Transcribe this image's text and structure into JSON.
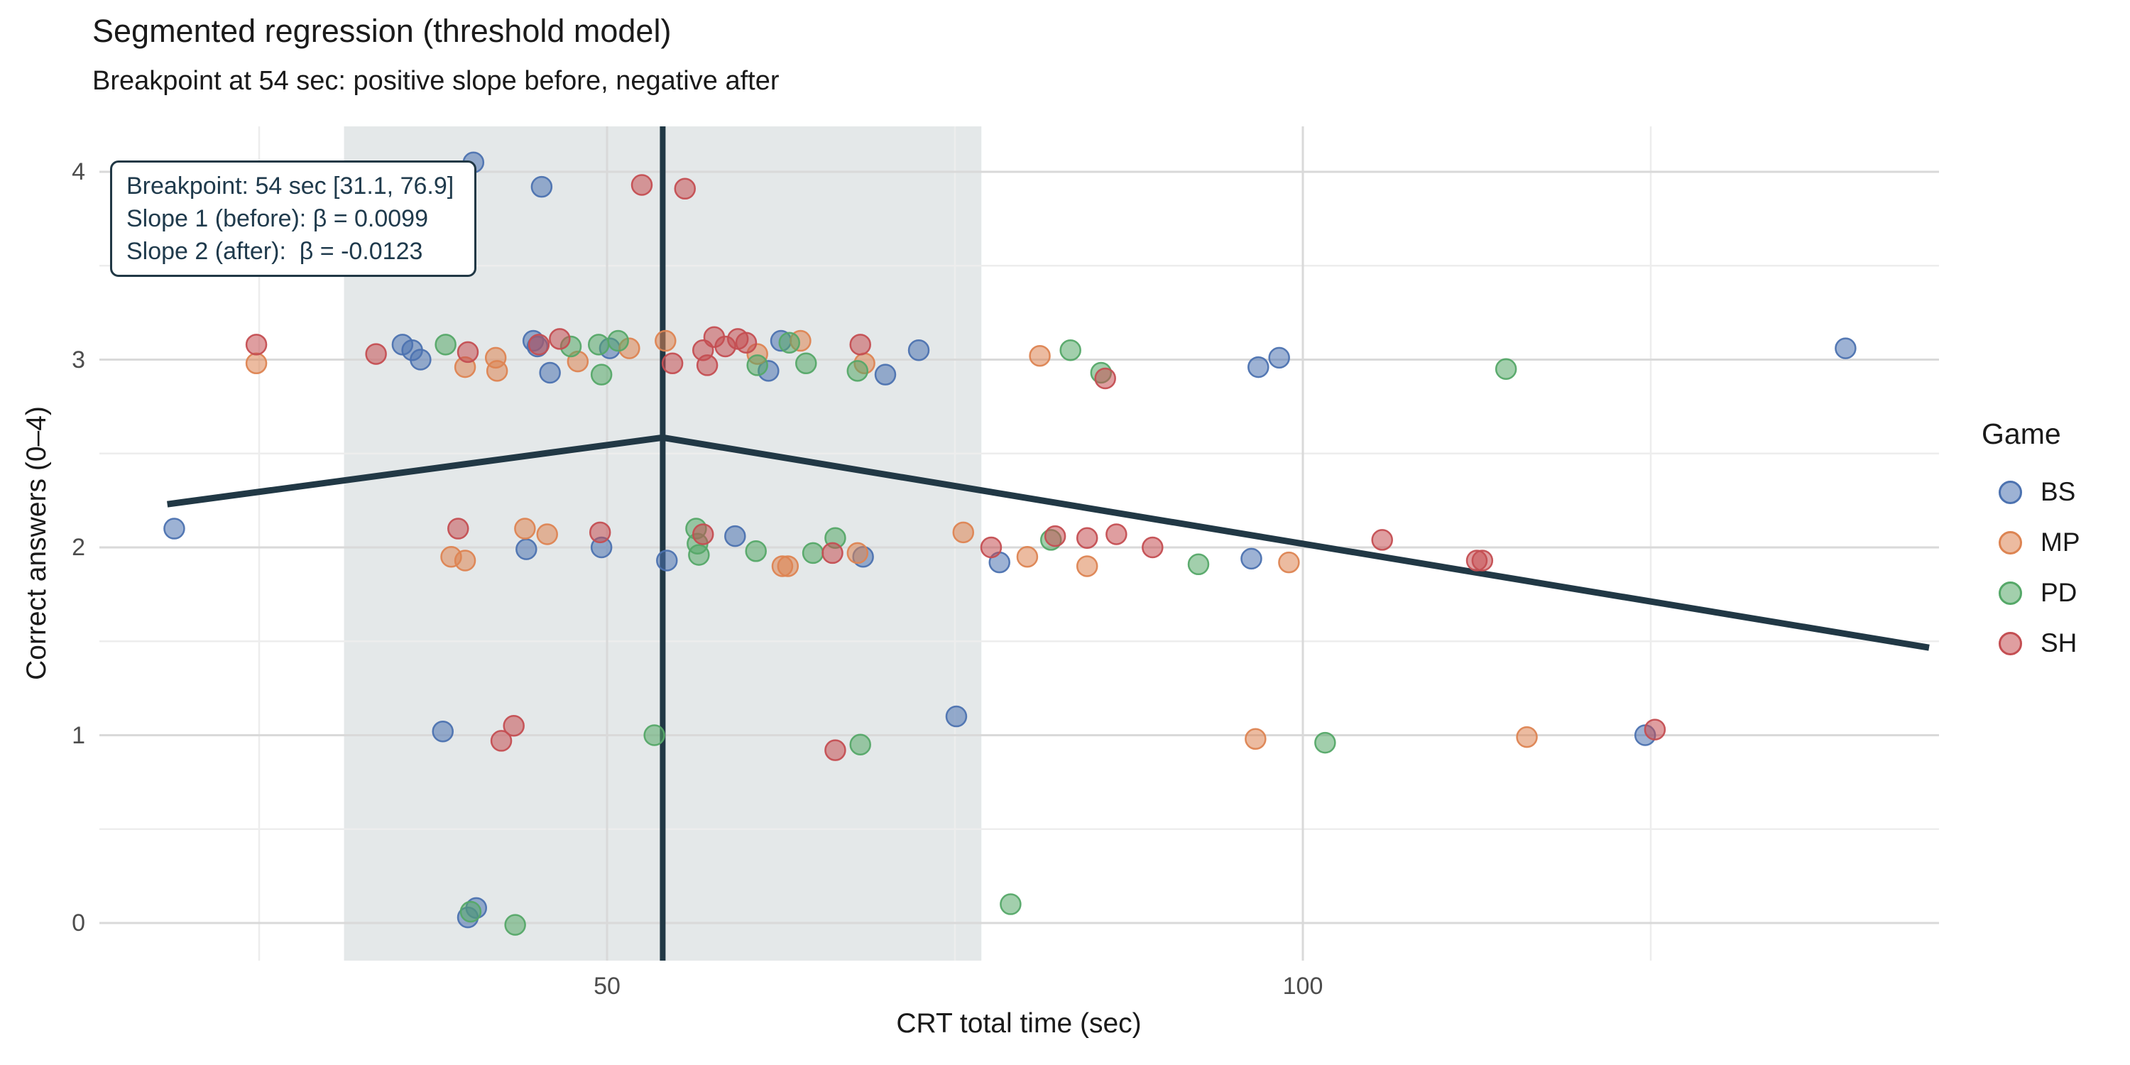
{
  "title": "Segmented regression (threshold model)",
  "subtitle": "Breakpoint at 54 sec: positive slope before, negative after",
  "x_axis": {
    "label": "CRT total time (sec)",
    "ticks": [
      50,
      100
    ],
    "minor_ticks": [
      25,
      75,
      125
    ],
    "range": [
      13,
      146
    ]
  },
  "y_axis": {
    "label": "Correct answers (0–4)",
    "ticks": [
      0,
      1,
      2,
      3,
      4
    ],
    "minor_ticks": [
      0.5,
      1.5,
      2.5,
      3.5
    ],
    "range": [
      -0.2,
      4.22
    ]
  },
  "annotation": {
    "lines": [
      "Breakpoint: 54 sec [31.1, 76.9]",
      "Slope 1 (before): β = 0.0099",
      "Slope 2 (after):  β = -0.0123"
    ]
  },
  "legend": {
    "title": "Game",
    "entries": [
      {
        "label": "BS",
        "color": "#4C72B0"
      },
      {
        "label": "MP",
        "color": "#DD8452"
      },
      {
        "label": "PD",
        "color": "#55A868"
      },
      {
        "label": "SH",
        "color": "#C44E52"
      }
    ]
  },
  "model": {
    "breakpoint_sec": 54,
    "ci_low": 31.1,
    "ci_high": 76.9,
    "slope_before": 0.0099,
    "slope_after": -0.0123,
    "segment_line": {
      "x": [
        18.4,
        54,
        145
      ],
      "y": [
        2.23,
        2.585,
        1.466
      ]
    }
  },
  "style_colors": {
    "line_dark": "#213845",
    "ci_band": "#e4e8e9",
    "grid_major": "#d9d9d9",
    "grid_minor": "#ededed",
    "tick_text": "#4d4d4d",
    "point_fill_alpha": 0.55
  },
  "chart_data": {
    "type": "scatter",
    "title": "Segmented regression (threshold model)",
    "subtitle": "Breakpoint at 54 sec: positive slope before, negative after",
    "xlabel": "CRT total time (sec)",
    "ylabel": "Correct answers (0–4)",
    "xlim": [
      13,
      146
    ],
    "ylim": [
      -0.2,
      4.22
    ],
    "grid": true,
    "legend_position": "right",
    "breakpoint": 54,
    "breakpoint_ci": [
      31.1,
      76.9
    ],
    "slope_before": 0.0099,
    "slope_after": -0.0123,
    "segment_line": {
      "x": [
        18.4,
        54,
        145
      ],
      "y": [
        2.23,
        2.585,
        1.466
      ]
    },
    "series": [
      {
        "name": "BS",
        "color": "#4C72B0",
        "points": [
          [
            18.9,
            2.1
          ],
          [
            35.3,
            3.08
          ],
          [
            36.0,
            3.05
          ],
          [
            36.6,
            3.0
          ],
          [
            38.2,
            1.02
          ],
          [
            40.0,
            0.03
          ],
          [
            40.4,
            4.05
          ],
          [
            40.6,
            0.08
          ],
          [
            44.2,
            1.99
          ],
          [
            44.7,
            3.1
          ],
          [
            45.0,
            3.07
          ],
          [
            45.3,
            3.92
          ],
          [
            45.9,
            2.93
          ],
          [
            49.6,
            2.0
          ],
          [
            50.2,
            3.06
          ],
          [
            54.3,
            1.93
          ],
          [
            59.2,
            2.06
          ],
          [
            61.6,
            2.94
          ],
          [
            62.5,
            3.1
          ],
          [
            68.4,
            1.95
          ],
          [
            70.0,
            2.92
          ],
          [
            72.4,
            3.05
          ],
          [
            75.1,
            1.1
          ],
          [
            78.2,
            1.92
          ],
          [
            96.3,
            1.94
          ],
          [
            96.8,
            2.96
          ],
          [
            98.3,
            3.01
          ],
          [
            124.6,
            1.0
          ],
          [
            139.0,
            3.06
          ]
        ]
      },
      {
        "name": "MP",
        "color": "#DD8452",
        "points": [
          [
            24.8,
            2.98
          ],
          [
            38.8,
            1.95
          ],
          [
            39.8,
            1.93
          ],
          [
            39.8,
            2.96
          ],
          [
            42.0,
            3.01
          ],
          [
            42.1,
            2.94
          ],
          [
            44.1,
            2.1
          ],
          [
            45.7,
            2.07
          ],
          [
            47.9,
            2.99
          ],
          [
            51.6,
            3.06
          ],
          [
            54.2,
            3.1
          ],
          [
            60.8,
            3.03
          ],
          [
            62.6,
            1.9
          ],
          [
            63.0,
            1.9
          ],
          [
            63.9,
            3.1
          ],
          [
            68.0,
            1.97
          ],
          [
            68.5,
            2.98
          ],
          [
            75.6,
            2.08
          ],
          [
            80.2,
            1.95
          ],
          [
            81.1,
            3.02
          ],
          [
            84.5,
            1.9
          ],
          [
            96.6,
            0.98
          ],
          [
            99.0,
            1.92
          ],
          [
            116.1,
            0.99
          ]
        ]
      },
      {
        "name": "PD",
        "color": "#55A868",
        "points": [
          [
            38.4,
            3.08
          ],
          [
            40.2,
            0.06
          ],
          [
            43.4,
            -0.01
          ],
          [
            47.4,
            3.07
          ],
          [
            49.4,
            3.08
          ],
          [
            49.6,
            2.92
          ],
          [
            50.8,
            3.1
          ],
          [
            53.4,
            1.0
          ],
          [
            56.4,
            2.1
          ],
          [
            56.5,
            2.02
          ],
          [
            56.6,
            1.96
          ],
          [
            60.7,
            1.98
          ],
          [
            60.8,
            2.97
          ],
          [
            63.1,
            3.09
          ],
          [
            64.3,
            2.98
          ],
          [
            64.8,
            1.97
          ],
          [
            66.4,
            2.05
          ],
          [
            68.0,
            2.94
          ],
          [
            68.2,
            0.95
          ],
          [
            79.0,
            0.1
          ],
          [
            81.9,
            2.04
          ],
          [
            83.3,
            3.05
          ],
          [
            85.5,
            2.93
          ],
          [
            92.5,
            1.91
          ],
          [
            101.6,
            0.96
          ],
          [
            114.6,
            2.95
          ]
        ]
      },
      {
        "name": "SH",
        "color": "#C44E52",
        "points": [
          [
            24.8,
            3.08
          ],
          [
            33.4,
            3.03
          ],
          [
            39.3,
            2.1
          ],
          [
            40.0,
            3.04
          ],
          [
            42.4,
            0.97
          ],
          [
            43.3,
            1.05
          ],
          [
            45.1,
            3.08
          ],
          [
            46.6,
            3.11
          ],
          [
            49.5,
            2.08
          ],
          [
            52.5,
            3.93
          ],
          [
            54.7,
            2.98
          ],
          [
            55.6,
            3.91
          ],
          [
            56.9,
            3.05
          ],
          [
            56.9,
            2.07
          ],
          [
            57.2,
            2.97
          ],
          [
            57.7,
            3.12
          ],
          [
            58.5,
            3.07
          ],
          [
            59.4,
            3.11
          ],
          [
            60.0,
            3.09
          ],
          [
            66.2,
            1.97
          ],
          [
            66.4,
            0.92
          ],
          [
            68.2,
            3.08
          ],
          [
            77.6,
            2.0
          ],
          [
            82.2,
            2.06
          ],
          [
            84.5,
            2.05
          ],
          [
            85.8,
            2.9
          ],
          [
            86.6,
            2.07
          ],
          [
            89.2,
            2.0
          ],
          [
            105.7,
            2.04
          ],
          [
            112.5,
            1.93
          ],
          [
            112.9,
            1.93
          ],
          [
            125.3,
            1.03
          ]
        ]
      }
    ]
  }
}
